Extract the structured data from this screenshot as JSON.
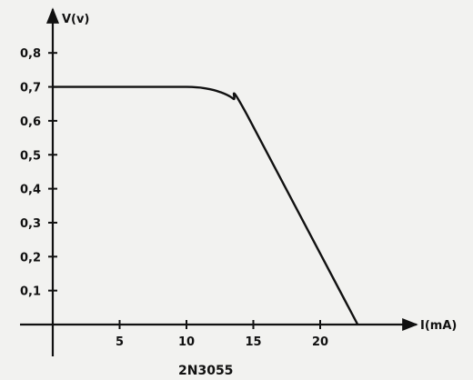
{
  "chart_data": {
    "type": "line",
    "title": "",
    "caption": "2N3055",
    "xlabel": "I(mA)",
    "ylabel": "V(v)",
    "xlim": [
      0,
      24.5
    ],
    "ylim": [
      0,
      0.8
    ],
    "x_ticks": [
      5,
      10,
      15,
      20
    ],
    "x_tick_labels": [
      "5",
      "10",
      "15",
      "20"
    ],
    "y_ticks": [
      0.1,
      0.2,
      0.3,
      0.4,
      0.5,
      0.6,
      0.7,
      0.8
    ],
    "y_tick_labels": [
      "0,1",
      "0,2",
      "0,3",
      "0,4",
      "0,5",
      "0,6",
      "0,7",
      "0,8"
    ],
    "grid": false,
    "series": [
      {
        "x": [
          0,
          5,
          10,
          11.5,
          12.5,
          13.5,
          14.5,
          22.8
        ],
        "y": [
          0.7,
          0.7,
          0.7,
          0.695,
          0.685,
          0.665,
          0.62,
          0.0
        ],
        "color": "#111111"
      }
    ]
  }
}
